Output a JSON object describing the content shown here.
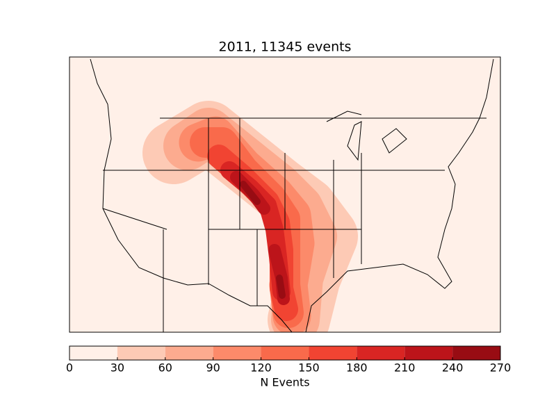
{
  "chart_data": {
    "type": "contour",
    "title": "2011, 11345 events",
    "colorbar_label": "N Events",
    "levels": [
      0,
      30,
      60,
      90,
      120,
      150,
      180,
      210,
      240,
      270
    ],
    "colors": [
      "#fff0e8",
      "#fdcab5",
      "#fcab8f",
      "#fc8a6a",
      "#f96a4b",
      "#f14432",
      "#d92523",
      "#bc141a",
      "#980c13"
    ],
    "xlim": [
      0,
      270
    ],
    "xticks": [
      0,
      30,
      60,
      90,
      120,
      150,
      180,
      210,
      240,
      270
    ]
  }
}
